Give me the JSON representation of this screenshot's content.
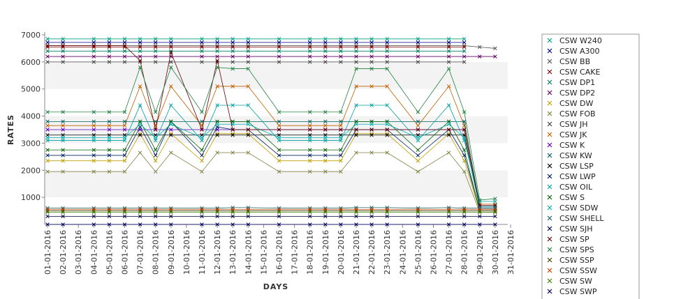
{
  "chart_data": {
    "type": "line",
    "title": "",
    "xlabel": "DAYS",
    "ylabel": "RATES",
    "ylim": [
      0,
      7000
    ],
    "yticks": [
      1000,
      2000,
      3000,
      4000,
      5000,
      6000,
      7000
    ],
    "x": [
      "01-01-2016",
      "02-01-2016",
      "03-01-2016",
      "04-01-2016",
      "05-01-2016",
      "06-01-2016",
      "07-01-2016",
      "08-01-2016",
      "09-01-2016",
      "10-01-2016",
      "11-01-2016",
      "12-01-2016",
      "13-01-2016",
      "14-01-2016",
      "15-01-2016",
      "16-01-2016",
      "17-01-2016",
      "18-01-2016",
      "19-01-2016",
      "20-01-2016",
      "21-01-2016",
      "22-01-2016",
      "23-01-2016",
      "24-01-2016",
      "25-01-2016",
      "26-01-2016",
      "27-01-2016",
      "28-01-2016",
      "29-01-2016",
      "30-01-2016",
      "31-01-2016"
    ],
    "grid": "alternating horizontal bands",
    "legend": "right",
    "series": [
      {
        "name": "CSW  W240",
        "color": "#00a080",
        "values": [
          6850,
          6850,
          null,
          6850,
          6850,
          6850,
          6850,
          6850,
          6850,
          null,
          6850,
          6850,
          6850,
          6850,
          null,
          6850,
          null,
          6850,
          6850,
          6850,
          6850,
          6850,
          6850,
          null,
          6850,
          null,
          6850,
          6850,
          null,
          null,
          null
        ]
      },
      {
        "name": "CSW A300",
        "color": "#000080",
        "values": [
          6720,
          6720,
          null,
          6720,
          6720,
          6720,
          6720,
          6720,
          6720,
          null,
          6720,
          6720,
          6720,
          6720,
          null,
          6720,
          null,
          6720,
          6720,
          6720,
          6720,
          6720,
          6720,
          null,
          6720,
          null,
          6720,
          6720,
          null,
          null,
          null
        ]
      },
      {
        "name": "CSW BB",
        "color": "#555555",
        "values": [
          6600,
          6600,
          null,
          6600,
          6600,
          6600,
          6600,
          6600,
          6600,
          null,
          6600,
          6600,
          6600,
          6600,
          null,
          6600,
          null,
          6600,
          6600,
          6600,
          6600,
          6600,
          6600,
          null,
          6600,
          null,
          6600,
          6600,
          6550,
          6500,
          null
        ]
      },
      {
        "name": "CSW CAKE",
        "color": "#800000",
        "values": [
          6550,
          6550,
          null,
          6550,
          6550,
          6550,
          6550,
          6550,
          6550,
          null,
          6550,
          6550,
          6550,
          6550,
          null,
          6550,
          null,
          6550,
          6550,
          6550,
          6550,
          6550,
          6550,
          null,
          6550,
          null,
          6550,
          6550,
          null,
          null,
          null
        ]
      },
      {
        "name": "CSW DP1",
        "color": "#008060",
        "values": [
          6400,
          6400,
          null,
          6400,
          6400,
          6400,
          6400,
          6400,
          6400,
          null,
          6400,
          6400,
          6400,
          6400,
          null,
          6400,
          null,
          6400,
          6400,
          6400,
          6400,
          6400,
          6400,
          null,
          6400,
          null,
          6400,
          6400,
          null,
          null,
          null
        ]
      },
      {
        "name": "CSW DP2",
        "color": "#600060",
        "values": [
          6200,
          6200,
          null,
          6200,
          6200,
          6200,
          6200,
          6200,
          6200,
          null,
          6200,
          6200,
          6200,
          6200,
          null,
          6200,
          null,
          6200,
          6200,
          6200,
          6200,
          6200,
          6200,
          null,
          6200,
          null,
          6200,
          6200,
          6200,
          6200,
          null
        ]
      },
      {
        "name": "CSW DW",
        "color": "#c0a000",
        "values": [
          2350,
          2350,
          null,
          2350,
          2350,
          2350,
          3350,
          2350,
          3350,
          null,
          2350,
          3350,
          3350,
          3350,
          null,
          2350,
          null,
          2350,
          2350,
          2350,
          3350,
          3350,
          3350,
          null,
          2350,
          null,
          3350,
          2350,
          500,
          500,
          null
        ]
      },
      {
        "name": "CSW FOB",
        "color": "#808040",
        "values": [
          1950,
          1950,
          null,
          1950,
          1950,
          1950,
          2650,
          1950,
          2650,
          null,
          1950,
          2650,
          2650,
          2650,
          null,
          1950,
          null,
          1950,
          1950,
          1950,
          2650,
          2650,
          2650,
          null,
          1950,
          null,
          2650,
          1950,
          450,
          450,
          null
        ]
      },
      {
        "name": "CSW JH",
        "color": "#404040",
        "values": [
          6000,
          6000,
          null,
          6000,
          6000,
          6000,
          6000,
          6000,
          6000,
          null,
          6000,
          6000,
          6000,
          6000,
          null,
          6000,
          null,
          6000,
          6000,
          6000,
          6000,
          6000,
          6000,
          null,
          6000,
          null,
          6000,
          6000,
          null,
          null,
          null
        ]
      },
      {
        "name": "CSW JK",
        "color": "#c06000",
        "values": [
          3650,
          3650,
          null,
          3650,
          3650,
          3650,
          5100,
          3650,
          5100,
          null,
          3650,
          5100,
          5100,
          5100,
          null,
          3650,
          null,
          3650,
          3650,
          3650,
          5100,
          5100,
          5100,
          null,
          3650,
          null,
          5100,
          3650,
          750,
          750,
          null
        ]
      },
      {
        "name": "CSW K",
        "color": "#6000c0",
        "values": [
          3500,
          3500,
          null,
          3500,
          3500,
          3500,
          3500,
          3500,
          3500,
          null,
          3500,
          3500,
          3500,
          3500,
          null,
          3500,
          null,
          3500,
          3500,
          3500,
          3500,
          3500,
          3500,
          null,
          3500,
          null,
          3500,
          3500,
          650,
          650,
          null
        ]
      },
      {
        "name": "CSW KW",
        "color": "#006060",
        "values": [
          3800,
          3800,
          null,
          3800,
          3800,
          3800,
          3800,
          3800,
          3800,
          null,
          3800,
          3800,
          3800,
          3800,
          null,
          3800,
          null,
          3800,
          3800,
          3800,
          3800,
          3800,
          3800,
          null,
          3800,
          null,
          3800,
          3800,
          700,
          700,
          null
        ]
      },
      {
        "name": "CSW LSP",
        "color": "#000000",
        "values": [
          3300,
          3300,
          null,
          3300,
          3300,
          3300,
          3300,
          3300,
          3300,
          null,
          3300,
          3300,
          3300,
          3300,
          null,
          3300,
          null,
          3300,
          3300,
          3300,
          3300,
          3300,
          3300,
          null,
          3300,
          null,
          3300,
          3300,
          600,
          600,
          null
        ]
      },
      {
        "name": "CSW LWP",
        "color": "#002060",
        "values": [
          2550,
          2550,
          null,
          2550,
          2550,
          2550,
          3600,
          2550,
          3800,
          null,
          2550,
          3600,
          3500,
          3500,
          null,
          2550,
          null,
          2550,
          2550,
          2550,
          3500,
          3500,
          3500,
          null,
          2550,
          null,
          3500,
          2550,
          550,
          550,
          null
        ]
      },
      {
        "name": "CSW OIL",
        "color": "#00a0a0",
        "values": [
          3100,
          3100,
          null,
          3100,
          3100,
          3100,
          4400,
          3100,
          4400,
          null,
          3100,
          4400,
          4400,
          4400,
          null,
          3100,
          null,
          3100,
          3100,
          3100,
          4400,
          4400,
          4400,
          null,
          3100,
          null,
          4400,
          3100,
          850,
          850,
          null
        ]
      },
      {
        "name": "CSW S",
        "color": "#006000",
        "values": [
          2750,
          2750,
          null,
          2750,
          2750,
          2750,
          3800,
          2750,
          3800,
          null,
          2750,
          3800,
          3800,
          3800,
          null,
          2750,
          null,
          2750,
          2750,
          2750,
          3800,
          3800,
          3800,
          null,
          2750,
          null,
          3800,
          2750,
          500,
          500,
          null
        ]
      },
      {
        "name": "CSW SDW",
        "color": "#00b0b0",
        "values": [
          3200,
          3200,
          null,
          3200,
          3200,
          3200,
          3700,
          3200,
          3700,
          null,
          3200,
          3700,
          3700,
          3700,
          null,
          3200,
          null,
          3200,
          3200,
          3200,
          3700,
          3700,
          3700,
          null,
          3200,
          null,
          3700,
          3200,
          650,
          650,
          null
        ]
      },
      {
        "name": "CSW SHELL",
        "color": "#206060",
        "values": [
          600,
          600,
          null,
          600,
          600,
          600,
          600,
          600,
          600,
          null,
          600,
          600,
          620,
          620,
          null,
          600,
          null,
          600,
          600,
          600,
          620,
          620,
          620,
          null,
          600,
          null,
          620,
          600,
          600,
          600,
          null
        ]
      },
      {
        "name": "CSW SJH",
        "color": "#000040",
        "values": [
          300,
          300,
          null,
          300,
          300,
          300,
          300,
          300,
          300,
          null,
          300,
          300,
          300,
          300,
          null,
          300,
          null,
          300,
          300,
          300,
          300,
          300,
          300,
          null,
          300,
          null,
          300,
          300,
          300,
          300,
          null
        ]
      },
      {
        "name": "CSW SP",
        "color": "#600000",
        "values": [
          6600,
          6600,
          null,
          6600,
          6600,
          6600,
          6050,
          3500,
          6350,
          null,
          3500,
          6050,
          3500,
          3500,
          null,
          3500,
          null,
          3500,
          3500,
          3500,
          3500,
          3500,
          3500,
          null,
          3500,
          null,
          3500,
          3500,
          700,
          700,
          null
        ]
      },
      {
        "name": "CSW SPS",
        "color": "#208040",
        "values": [
          4150,
          4150,
          null,
          4150,
          4150,
          4150,
          5800,
          4150,
          5800,
          null,
          4150,
          5800,
          5750,
          5750,
          null,
          4150,
          null,
          4150,
          4150,
          4150,
          5750,
          5750,
          5750,
          null,
          4150,
          null,
          5750,
          4150,
          900,
          950,
          null
        ]
      },
      {
        "name": "CSW SSP",
        "color": "#404000",
        "values": [
          500,
          500,
          null,
          500,
          500,
          500,
          500,
          500,
          500,
          null,
          500,
          500,
          500,
          500,
          null,
          500,
          null,
          500,
          500,
          500,
          500,
          500,
          500,
          null,
          500,
          null,
          500,
          500,
          500,
          500,
          null
        ]
      },
      {
        "name": "CSW SSW",
        "color": "#c04000",
        "values": [
          550,
          550,
          null,
          550,
          550,
          550,
          550,
          550,
          550,
          null,
          550,
          550,
          550,
          550,
          null,
          550,
          null,
          550,
          550,
          550,
          550,
          550,
          550,
          null,
          550,
          null,
          550,
          550,
          550,
          550,
          null
        ]
      },
      {
        "name": "CSW SW",
        "color": "#408000",
        "values": [
          450,
          450,
          null,
          450,
          450,
          450,
          450,
          450,
          450,
          null,
          450,
          450,
          450,
          450,
          null,
          450,
          null,
          450,
          450,
          450,
          450,
          450,
          450,
          null,
          450,
          null,
          450,
          450,
          450,
          450,
          null
        ]
      },
      {
        "name": "CSW SWP",
        "color": "#000060",
        "values": [
          0,
          0,
          null,
          0,
          0,
          0,
          0,
          0,
          0,
          null,
          0,
          0,
          0,
          0,
          null,
          0,
          null,
          0,
          0,
          0,
          0,
          0,
          0,
          null,
          0,
          null,
          0,
          0,
          0,
          0,
          null
        ]
      }
    ]
  }
}
